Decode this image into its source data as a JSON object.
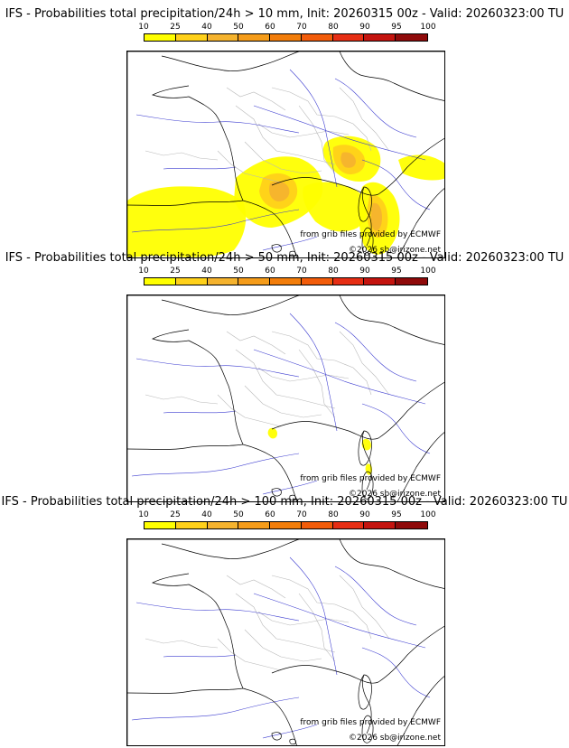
{
  "legend": {
    "thresholds": [
      "10",
      "25",
      "40",
      "50",
      "60",
      "70",
      "80",
      "90",
      "95",
      "100"
    ],
    "colors": [
      "#ffff00",
      "#ffd11a",
      "#f5b32e",
      "#f59c1a",
      "#f27d0a",
      "#f25c0a",
      "#e62e14",
      "#c4140f",
      "#8f0a0a",
      "#5a0707"
    ]
  },
  "panels": [
    {
      "title": "IFS - Probabilities total precipitation/24h > 10 mm, Init: 20260315 00z - Valid: 20260323:00 TU",
      "credit_source": "from grib files provided by ECMWF",
      "credit_copyright": "©2026 sb@irizone.net",
      "probability_areas": "widespread"
    },
    {
      "title": "IFS - Probabilities total precipitation/24h > 50 mm, Init: 20260315 00z - Valid: 20260323:00 TU",
      "credit_source": "from grib files provided by ECMWF",
      "credit_copyright": "©2026 sb@irizone.net",
      "probability_areas": "isolated"
    },
    {
      "title": "IFS - Probabilities total precipitation/24h > 100 mm, Init: 20260315 00z - Valid: 20260323:00 TU",
      "credit_source": "from grib files provided by ECMWF",
      "credit_copyright": "©2026 sb@irizone.net",
      "probability_areas": "none"
    }
  ]
}
